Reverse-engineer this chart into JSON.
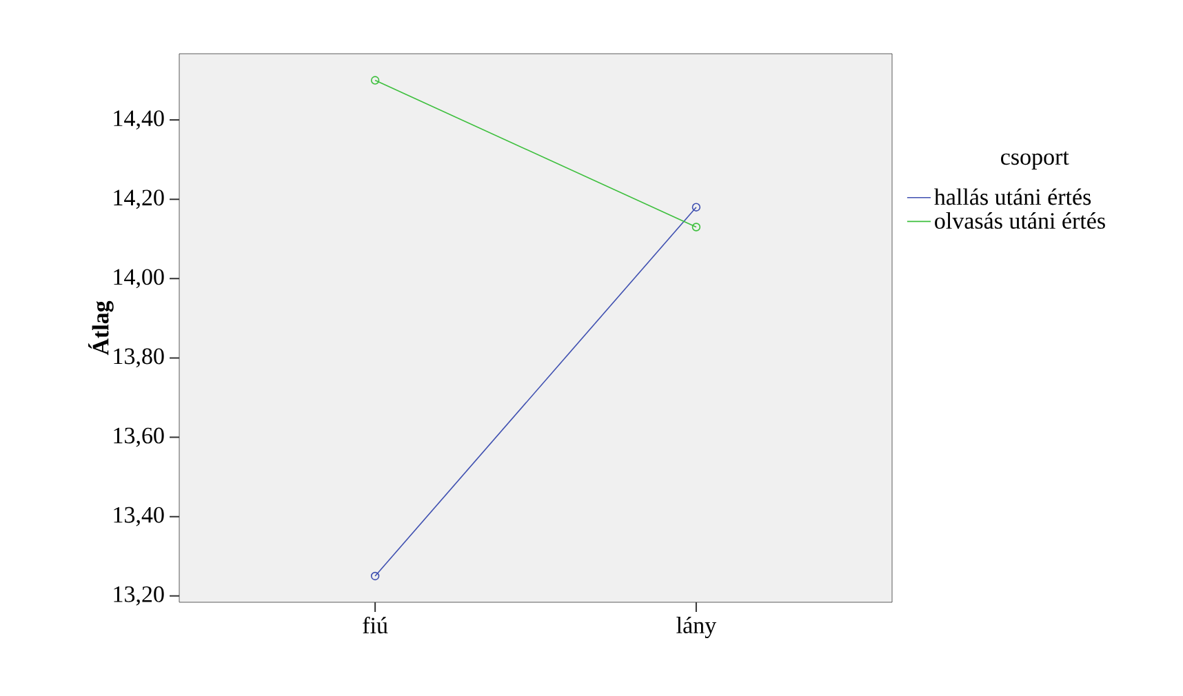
{
  "chart_data": {
    "type": "line",
    "ylabel": "Átlag",
    "legend_title": "csoport",
    "legend": "right",
    "marker": "circle",
    "categories": [
      "fiú",
      "lány"
    ],
    "series": [
      {
        "name": "hallás utáni értés",
        "color": "#3e4fb0",
        "values": [
          13.25,
          14.18
        ]
      },
      {
        "name": "olvasás utáni értés",
        "color": "#3dbf3d",
        "values": [
          14.5,
          14.13
        ]
      }
    ],
    "ylim": [
      13.184,
      14.567
    ],
    "yticks": [
      {
        "value": 13.2,
        "label": "13,20"
      },
      {
        "value": 13.4,
        "label": "13,40"
      },
      {
        "value": 13.6,
        "label": "13,60"
      },
      {
        "value": 13.8,
        "label": "13,80"
      },
      {
        "value": 14.0,
        "label": "14,00"
      },
      {
        "value": 14.2,
        "label": "14,20"
      },
      {
        "value": 14.4,
        "label": "14,40"
      }
    ]
  }
}
